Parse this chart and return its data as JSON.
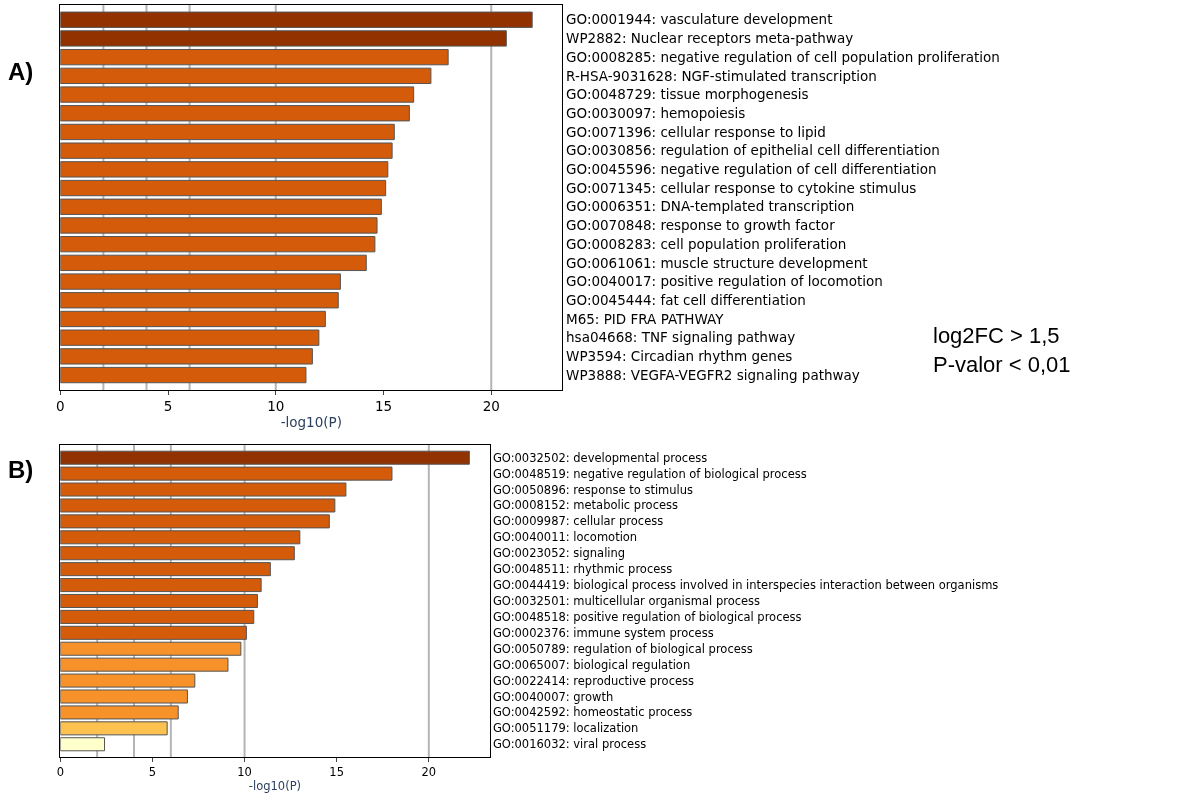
{
  "chart_data": [
    {
      "type": "bar",
      "orientation": "horizontal",
      "title": "A)",
      "xlabel": "-log10(P)",
      "categories": [
        "GO:0001944: vasculature development",
        "WP2882: Nuclear receptors meta-pathway",
        "GO:0008285: negative regulation of cell population proliferation",
        "R-HSA-9031628: NGF-stimulated transcription",
        "GO:0048729: tissue morphogenesis",
        "GO:0030097: hemopoiesis",
        "GO:0071396: cellular response to lipid",
        "GO:0030856: regulation of epithelial cell differentiation",
        "GO:0045596: negative regulation of cell differentiation",
        "GO:0071345: cellular response to cytokine stimulus",
        "GO:0006351: DNA-templated transcription",
        "GO:0070848: response to growth factor",
        "GO:0008283: cell population proliferation",
        "GO:0061061: muscle structure development",
        "GO:0040017: positive regulation of locomotion",
        "GO:0045444: fat cell differentiation",
        "M65: PID FRA PATHWAY",
        "hsa04668: TNF signaling pathway",
        "WP3594: Circadian rhythm genes",
        "WP3888: VEGFA-VEGFR2 signaling pathway"
      ],
      "values": [
        21.9,
        20.7,
        18.0,
        17.2,
        16.4,
        16.2,
        15.5,
        15.4,
        15.2,
        15.1,
        14.9,
        14.7,
        14.6,
        14.2,
        13.0,
        12.9,
        12.3,
        12.0,
        11.7,
        11.4
      ],
      "colors": [
        "#923200",
        "#923200",
        "#d45b0a",
        "#d45b0a",
        "#d45b0a",
        "#d45b0a",
        "#d45b0a",
        "#d45b0a",
        "#d45b0a",
        "#d45b0a",
        "#d45b0a",
        "#d45b0a",
        "#d45b0a",
        "#d45b0a",
        "#d45b0a",
        "#d45b0a",
        "#d45b0a",
        "#d45b0a",
        "#d45b0a",
        "#d45b0a"
      ],
      "xlim": [
        0,
        23.3
      ],
      "xticks": [
        0,
        5,
        10,
        15,
        20
      ],
      "ref_lines": [
        {
          "axis": "x",
          "value": 2,
          "color": "#b4b4b4"
        },
        {
          "axis": "x",
          "value": 4,
          "color": "#b4b4b4"
        },
        {
          "axis": "x",
          "value": 6,
          "color": "#b4b4b4"
        },
        {
          "axis": "x",
          "value": 10,
          "color": "#b4b4b4"
        },
        {
          "axis": "x",
          "value": 20,
          "color": "#b4b4b4"
        }
      ],
      "annotations": [
        "log2FC > 1,5\nP-valor < 0,01"
      ]
    },
    {
      "type": "bar",
      "orientation": "horizontal",
      "title": "B)",
      "xlabel": "-log10(P)",
      "categories": [
        "GO:0032502: developmental process",
        "GO:0048519: negative regulation of biological process",
        "GO:0050896: response to stimulus",
        "GO:0008152: metabolic process",
        "GO:0009987: cellular process",
        "GO:0040011: locomotion",
        "GO:0023052: signaling",
        "GO:0048511: rhythmic process",
        "GO:0044419: biological process involved in interspecies interaction between organisms",
        "GO:0032501: multicellular organismal process",
        "GO:0048518: positive regulation of biological process",
        "GO:0002376: immune system process",
        "GO:0050789: regulation of biological process",
        "GO:0065007: biological regulation",
        "GO:0022414: reproductive process",
        "GO:0040007: growth",
        "GO:0042592: homeostatic process",
        "GO:0051179: localization",
        "GO:0016032: viral process"
      ],
      "values": [
        22.2,
        18.0,
        15.5,
        14.9,
        14.6,
        13.0,
        12.7,
        11.4,
        10.9,
        10.7,
        10.5,
        10.1,
        9.8,
        9.1,
        7.3,
        6.9,
        6.4,
        5.8,
        2.4
      ],
      "colors": [
        "#923200",
        "#d45b0a",
        "#d45b0a",
        "#d45b0a",
        "#d45b0a",
        "#d45b0a",
        "#d45b0a",
        "#d45b0a",
        "#d45b0a",
        "#d45b0a",
        "#d45b0a",
        "#d45b0a",
        "#f7922a",
        "#f7922a",
        "#f7922a",
        "#f7922a",
        "#f7922a",
        "#fdc150",
        "#ffffcc"
      ],
      "xlim": [
        0,
        23.3
      ],
      "xticks": [
        0,
        5,
        10,
        15,
        20
      ],
      "ref_lines": [
        {
          "axis": "x",
          "value": 2,
          "color": "#b4b4b4"
        },
        {
          "axis": "x",
          "value": 4,
          "color": "#b4b4b4"
        },
        {
          "axis": "x",
          "value": 6,
          "color": "#b4b4b4"
        },
        {
          "axis": "x",
          "value": 10,
          "color": "#b4b4b4"
        },
        {
          "axis": "x",
          "value": 20,
          "color": "#b4b4b4"
        }
      ]
    }
  ]
}
